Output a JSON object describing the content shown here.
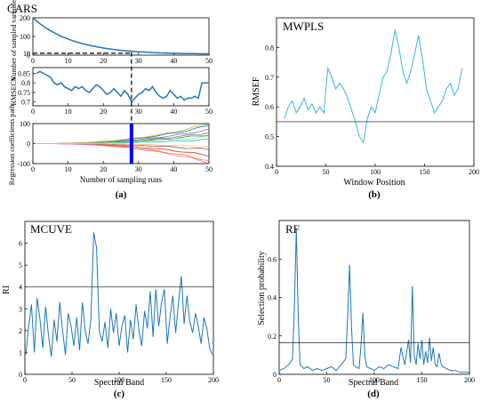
{
  "chart_data": [
    {
      "id": "a1",
      "type": "line",
      "title": "CARS",
      "ylabel": "Number of sampled variables",
      "xlim": [
        0,
        50
      ],
      "ylim": [
        0,
        200
      ],
      "xticks": [
        0,
        10,
        20,
        30,
        40,
        50
      ],
      "yticks": [
        0,
        10,
        100,
        200
      ],
      "color": "#1f77b4",
      "series": [
        {
          "x": [
            0,
            2,
            4,
            6,
            8,
            10,
            12,
            14,
            16,
            18,
            20,
            22,
            24,
            26,
            28,
            30,
            32,
            34,
            36,
            38,
            40,
            42,
            44,
            46,
            48,
            50
          ],
          "values": [
            200,
            168,
            142,
            120,
            101,
            86,
            73,
            62,
            53,
            45,
            38,
            33,
            28,
            24,
            21,
            18,
            16,
            14,
            12,
            11,
            10,
            9,
            8,
            8,
            7,
            7
          ]
        }
      ],
      "hline": {
        "y": 10,
        "x_end": 28,
        "style": "dashed"
      }
    },
    {
      "id": "a2",
      "type": "line",
      "ylabel": "RMSECV",
      "xlim": [
        0,
        50
      ],
      "ylim": [
        0.68,
        0.88
      ],
      "xticks": [
        0,
        10,
        20,
        30,
        40,
        50
      ],
      "yticks": [
        0.7,
        0.75,
        0.8,
        0.85
      ],
      "color": "#1f77b4",
      "series": [
        {
          "x": [
            1,
            2,
            3,
            4,
            5,
            6,
            7,
            8,
            9,
            10,
            11,
            12,
            13,
            14,
            15,
            16,
            17,
            18,
            19,
            20,
            21,
            22,
            23,
            24,
            25,
            26,
            27,
            28,
            29,
            30,
            31,
            32,
            33,
            34,
            35,
            36,
            37,
            38,
            39,
            40,
            41,
            42,
            43,
            44,
            45,
            46,
            47,
            48,
            49,
            50
          ],
          "values": [
            0.85,
            0.86,
            0.85,
            0.84,
            0.83,
            0.8,
            0.79,
            0.8,
            0.78,
            0.77,
            0.76,
            0.78,
            0.77,
            0.78,
            0.76,
            0.75,
            0.77,
            0.79,
            0.78,
            0.76,
            0.74,
            0.75,
            0.77,
            0.75,
            0.73,
            0.76,
            0.74,
            0.7,
            0.72,
            0.74,
            0.75,
            0.77,
            0.76,
            0.78,
            0.75,
            0.73,
            0.72,
            0.73,
            0.76,
            0.74,
            0.72,
            0.73,
            0.71,
            0.72,
            0.72,
            0.73,
            0.72,
            0.8,
            0.8,
            0.8
          ]
        }
      ]
    },
    {
      "id": "a3",
      "type": "line",
      "ylabel": "Regression coefficients path",
      "xlabel": "Number of sampling runs",
      "xlim": [
        0,
        50
      ],
      "ylim": [
        -100,
        100
      ],
      "xticks": [
        0,
        10,
        20,
        30,
        40,
        50
      ],
      "yticks": [
        -100,
        0,
        100
      ],
      "marker_x": 28,
      "marker_color": "#0000ff",
      "panel_label": "(a)"
    },
    {
      "id": "b",
      "type": "line",
      "title": "MWPLS",
      "xlabel": "Window Position",
      "ylabel": "RMSEF",
      "xlim": [
        0,
        200
      ],
      "ylim": [
        0.4,
        0.9
      ],
      "xticks": [
        0,
        50,
        100,
        150,
        200
      ],
      "yticks": [
        0.4,
        0.5,
        0.6,
        0.7,
        0.8
      ],
      "ytick_labels": [
        "0.4",
        "0.5",
        "0.6",
        "0.7",
        "0.8"
      ],
      "color": "#35b7d6",
      "series": [
        {
          "x": [
            8,
            12,
            16,
            20,
            24,
            28,
            32,
            36,
            40,
            44,
            48,
            52,
            56,
            60,
            64,
            68,
            72,
            76,
            80,
            84,
            88,
            92,
            96,
            100,
            104,
            108,
            112,
            116,
            120,
            124,
            128,
            132,
            136,
            140,
            144,
            148,
            152,
            156,
            160,
            164,
            168,
            172,
            176,
            180,
            184,
            188
          ],
          "values": [
            0.56,
            0.6,
            0.62,
            0.58,
            0.6,
            0.63,
            0.59,
            0.61,
            0.58,
            0.6,
            0.58,
            0.73,
            0.7,
            0.66,
            0.68,
            0.66,
            0.63,
            0.59,
            0.55,
            0.5,
            0.48,
            0.56,
            0.6,
            0.58,
            0.64,
            0.7,
            0.72,
            0.78,
            0.86,
            0.8,
            0.72,
            0.68,
            0.72,
            0.78,
            0.84,
            0.76,
            0.66,
            0.62,
            0.58,
            0.6,
            0.62,
            0.66,
            0.68,
            0.64,
            0.66,
            0.73
          ]
        }
      ],
      "hline": {
        "y": 0.55
      },
      "panel_label": "(b)"
    },
    {
      "id": "c",
      "type": "line",
      "title": "MCUVE",
      "xlabel": "Spectral Band",
      "ylabel": "RI",
      "xlim": [
        0,
        200
      ],
      "ylim": [
        0,
        7
      ],
      "xticks": [
        0,
        50,
        100,
        150,
        200
      ],
      "yticks": [
        0,
        1,
        2,
        3,
        4,
        5,
        6
      ],
      "color": "#1f77b4",
      "series": [
        {
          "x": [
            1,
            4,
            7,
            10,
            13,
            16,
            19,
            22,
            25,
            28,
            31,
            34,
            37,
            40,
            43,
            46,
            49,
            52,
            55,
            58,
            61,
            64,
            67,
            70,
            73,
            76,
            79,
            82,
            85,
            88,
            91,
            94,
            97,
            100,
            103,
            106,
            109,
            112,
            115,
            118,
            121,
            124,
            127,
            130,
            133,
            136,
            139,
            142,
            145,
            148,
            151,
            154,
            157,
            160,
            163,
            166,
            169,
            172,
            175,
            178,
            181,
            184,
            187,
            190,
            193,
            196,
            199
          ],
          "values": [
            0.9,
            2.2,
            3.2,
            1.0,
            3.5,
            2.5,
            1.2,
            3.1,
            1.8,
            0.8,
            2.5,
            1.5,
            3.3,
            2.0,
            0.9,
            2.8,
            2.2,
            1.3,
            2.6,
            1.1,
            3.3,
            2.0,
            1.4,
            2.5,
            6.5,
            5.8,
            2.0,
            1.5,
            2.4,
            1.2,
            3.0,
            1.9,
            2.8,
            1.3,
            2.2,
            2.7,
            1.0,
            2.5,
            1.6,
            3.2,
            2.0,
            1.3,
            2.9,
            2.1,
            3.8,
            1.7,
            3.9,
            2.2,
            3.3,
            3.9,
            1.4,
            2.6,
            3.6,
            1.9,
            3.3,
            4.5,
            2.3,
            3.6,
            2.4,
            1.9,
            2.8,
            2.2,
            1.4,
            2.6,
            2.1,
            1.2,
            0.9
          ]
        }
      ],
      "hline": {
        "y": 4
      },
      "panel_label": "(c)"
    },
    {
      "id": "d",
      "type": "line",
      "title": "RF",
      "xlabel": "Spectral Band",
      "ylabel": "Selection probability",
      "xlim": [
        0,
        200
      ],
      "ylim": [
        0,
        0.8
      ],
      "xticks": [
        0,
        50,
        100,
        150,
        200
      ],
      "yticks": [
        0,
        0.2,
        0.4,
        0.6
      ],
      "color": "#1f77b4",
      "series": [
        {
          "x": [
            0,
            5,
            10,
            14,
            16,
            18,
            20,
            22,
            26,
            30,
            35,
            40,
            45,
            50,
            55,
            60,
            65,
            70,
            72,
            74,
            76,
            78,
            80,
            84,
            86,
            88,
            90,
            92,
            96,
            100,
            105,
            110,
            115,
            120,
            125,
            128,
            132,
            136,
            138,
            140,
            142,
            144,
            146,
            148,
            150,
            152,
            154,
            156,
            158,
            160,
            162,
            164,
            166,
            168,
            170,
            172,
            176,
            180,
            185,
            190,
            195,
            200
          ],
          "values": [
            0.02,
            0.03,
            0.05,
            0.08,
            0.35,
            0.76,
            0.3,
            0.05,
            0.03,
            0.04,
            0.02,
            0.03,
            0.02,
            0.03,
            0.04,
            0.02,
            0.05,
            0.08,
            0.3,
            0.57,
            0.25,
            0.05,
            0.04,
            0.03,
            0.15,
            0.32,
            0.1,
            0.04,
            0.03,
            0.02,
            0.04,
            0.03,
            0.05,
            0.04,
            0.03,
            0.14,
            0.05,
            0.18,
            0.06,
            0.46,
            0.1,
            0.05,
            0.16,
            0.08,
            0.18,
            0.05,
            0.12,
            0.06,
            0.19,
            0.07,
            0.14,
            0.05,
            0.04,
            0.11,
            0.06,
            0.04,
            0.03,
            0.02,
            0.02,
            0.01,
            0.01,
            0.01
          ]
        }
      ],
      "hline": {
        "y": 0.165
      },
      "panel_label": "(d)"
    }
  ]
}
